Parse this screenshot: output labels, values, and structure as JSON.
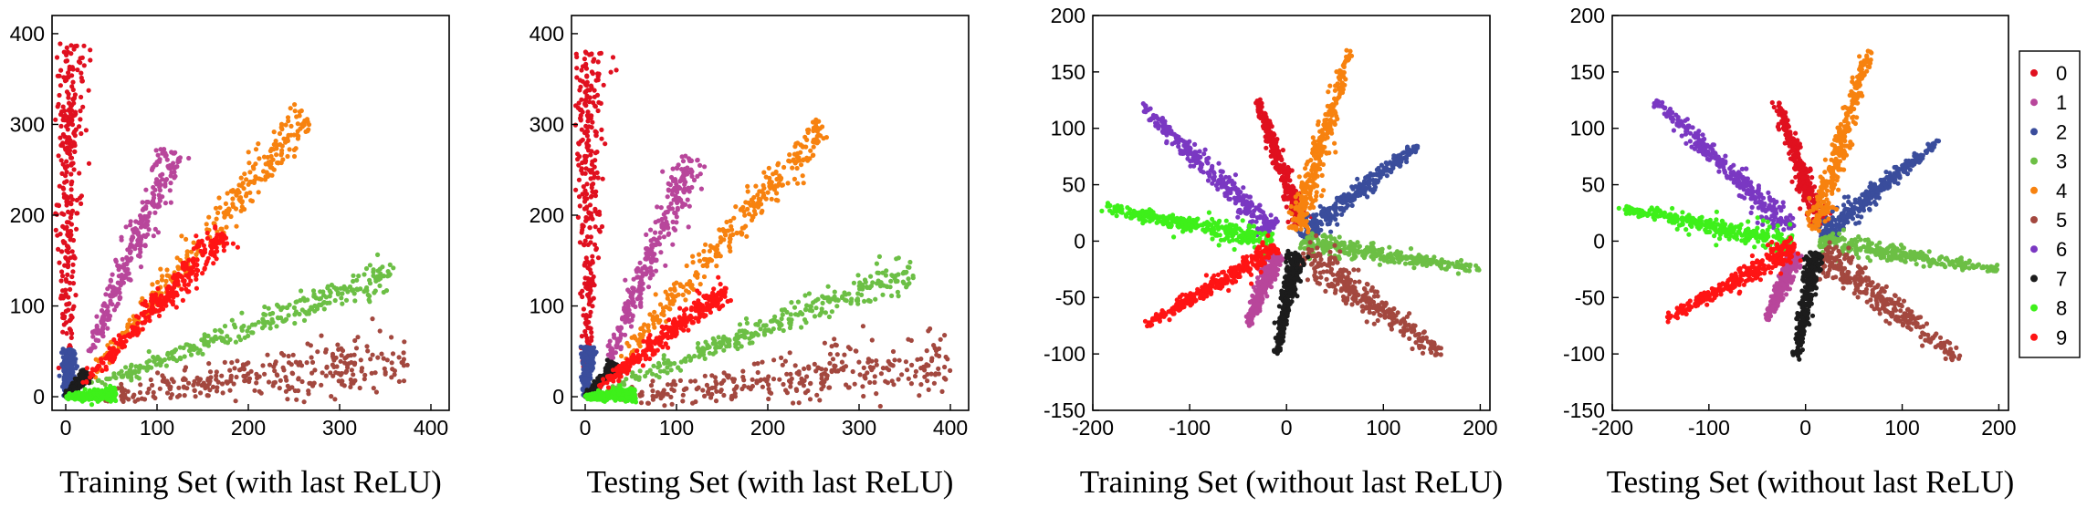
{
  "figure": {
    "legend": [
      "0",
      "1",
      "2",
      "3",
      "4",
      "5",
      "6",
      "7",
      "8",
      "9"
    ],
    "colors": {
      "0": "#e0101f",
      "1": "#b8469b",
      "2": "#3a4d9c",
      "3": "#6cbf45",
      "4": "#f7820f",
      "5": "#a3483f",
      "6": "#7a38c2",
      "7": "#1c1c1c",
      "8": "#3ef01a",
      "9": "#ff1414"
    }
  },
  "chart_data": [
    {
      "type": "scatter",
      "title": "",
      "xlabel": "Training Set (with last ReLU)",
      "ylabel": "",
      "xlim": [
        -15,
        420
      ],
      "ylim": [
        -15,
        420
      ],
      "xticks": [
        0,
        100,
        200,
        300,
        400
      ],
      "yticks": [
        0,
        100,
        200,
        300,
        400
      ],
      "grid": false,
      "series": [
        {
          "name": "0",
          "points": [
            [
              2,
              15
            ],
            [
              5,
              390
            ]
          ]
        },
        {
          "name": "1",
          "points": [
            [
              25,
              45
            ],
            [
              118,
              270
            ]
          ]
        },
        {
          "name": "2",
          "points": [
            [
              0,
              0
            ],
            [
              5,
              52
            ]
          ]
        },
        {
          "name": "3",
          "points": [
            [
              25,
              10
            ],
            [
              365,
              140
            ]
          ]
        },
        {
          "name": "4",
          "points": [
            [
              25,
              20
            ],
            [
              265,
              310
            ]
          ]
        },
        {
          "name": "5",
          "points": [
            [
              35,
              0
            ],
            [
              375,
              40
            ]
          ]
        },
        {
          "name": "7",
          "points": [
            [
              0,
              0
            ],
            [
              25,
              25
            ]
          ]
        },
        {
          "name": "8",
          "points": [
            [
              0,
              0
            ],
            [
              55,
              3
            ]
          ]
        },
        {
          "name": "9",
          "points": [
            [
              15,
              10
            ],
            [
              175,
              180
            ]
          ]
        }
      ]
    },
    {
      "type": "scatter",
      "title": "",
      "xlabel": "Testing Set (with last ReLU)",
      "ylabel": "",
      "xlim": [
        -15,
        420
      ],
      "ylim": [
        -15,
        420
      ],
      "xticks": [
        0,
        100,
        200,
        300,
        400
      ],
      "yticks": [
        0,
        100,
        200,
        300,
        400
      ],
      "grid": false,
      "series": [
        {
          "name": "0",
          "points": [
            [
              2,
              10
            ],
            [
              5,
              380
            ]
          ]
        },
        {
          "name": "1",
          "points": [
            [
              25,
              40
            ],
            [
              118,
              265
            ]
          ]
        },
        {
          "name": "2",
          "points": [
            [
              0,
              0
            ],
            [
              5,
              55
            ]
          ]
        },
        {
          "name": "3",
          "points": [
            [
              25,
              10
            ],
            [
              360,
              140
            ]
          ]
        },
        {
          "name": "4",
          "points": [
            [
              30,
              30
            ],
            [
              260,
              300
            ]
          ]
        },
        {
          "name": "5",
          "points": [
            [
              40,
              0
            ],
            [
              400,
              40
            ]
          ]
        },
        {
          "name": "7",
          "points": [
            [
              0,
              0
            ],
            [
              35,
              35
            ]
          ]
        },
        {
          "name": "8",
          "points": [
            [
              0,
              0
            ],
            [
              55,
              3
            ]
          ]
        },
        {
          "name": "9",
          "points": [
            [
              15,
              10
            ],
            [
              155,
              120
            ]
          ]
        }
      ]
    },
    {
      "type": "scatter",
      "title": "",
      "xlabel": "Training Set (without last ReLU)",
      "ylabel": "",
      "xlim": [
        -200,
        210
      ],
      "ylim": [
        -150,
        200
      ],
      "xticks": [
        -200,
        -100,
        0,
        100,
        200
      ],
      "yticks": [
        -150,
        -100,
        -50,
        0,
        50,
        100,
        150,
        200
      ],
      "grid": false,
      "series": [
        {
          "name": "0",
          "points": [
            [
              -30,
              125
            ],
            [
              15,
              15
            ]
          ]
        },
        {
          "name": "1",
          "points": [
            [
              -40,
              -75
            ],
            [
              -10,
              -10
            ]
          ]
        },
        {
          "name": "2",
          "points": [
            [
              140,
              88
            ],
            [
              15,
              5
            ]
          ]
        },
        {
          "name": "3",
          "points": [
            [
              200,
              -25
            ],
            [
              15,
              0
            ]
          ]
        },
        {
          "name": "4",
          "points": [
            [
              65,
              170
            ],
            [
              10,
              10
            ]
          ]
        },
        {
          "name": "5",
          "points": [
            [
              160,
              -100
            ],
            [
              15,
              -10
            ]
          ]
        },
        {
          "name": "6",
          "points": [
            [
              -150,
              120
            ],
            [
              -15,
              10
            ]
          ]
        },
        {
          "name": "7",
          "points": [
            [
              -10,
              -100
            ],
            [
              10,
              -10
            ]
          ]
        },
        {
          "name": "8",
          "points": [
            [
              -190,
              30
            ],
            [
              -15,
              0
            ]
          ]
        },
        {
          "name": "9",
          "points": [
            [
              -145,
              -75
            ],
            [
              -10,
              -5
            ]
          ]
        }
      ]
    },
    {
      "type": "scatter",
      "title": "",
      "xlabel": "Testing Set (without last ReLU)",
      "ylabel": "",
      "xlim": [
        -200,
        210
      ],
      "ylim": [
        -150,
        200
      ],
      "xticks": [
        -200,
        -100,
        0,
        100,
        200
      ],
      "yticks": [
        -150,
        -100,
        -50,
        0,
        50,
        100,
        150,
        200
      ],
      "grid": false,
      "series": [
        {
          "name": "0",
          "points": [
            [
              -30,
              125
            ],
            [
              15,
              15
            ]
          ]
        },
        {
          "name": "1",
          "points": [
            [
              -40,
              -70
            ],
            [
              -10,
              -10
            ]
          ]
        },
        {
          "name": "2",
          "points": [
            [
              140,
              90
            ],
            [
              15,
              5
            ]
          ]
        },
        {
          "name": "3",
          "points": [
            [
              200,
              -25
            ],
            [
              15,
              0
            ]
          ]
        },
        {
          "name": "4",
          "points": [
            [
              65,
              170
            ],
            [
              10,
              10
            ]
          ]
        },
        {
          "name": "5",
          "points": [
            [
              160,
              -105
            ],
            [
              15,
              -10
            ]
          ]
        },
        {
          "name": "6",
          "points": [
            [
              -155,
              125
            ],
            [
              -15,
              10
            ]
          ]
        },
        {
          "name": "7",
          "points": [
            [
              -10,
              -105
            ],
            [
              10,
              -10
            ]
          ]
        },
        {
          "name": "8",
          "points": [
            [
              -195,
              30
            ],
            [
              -15,
              0
            ]
          ]
        },
        {
          "name": "9",
          "points": [
            [
              -145,
              -70
            ],
            [
              -10,
              -5
            ]
          ]
        }
      ]
    }
  ]
}
